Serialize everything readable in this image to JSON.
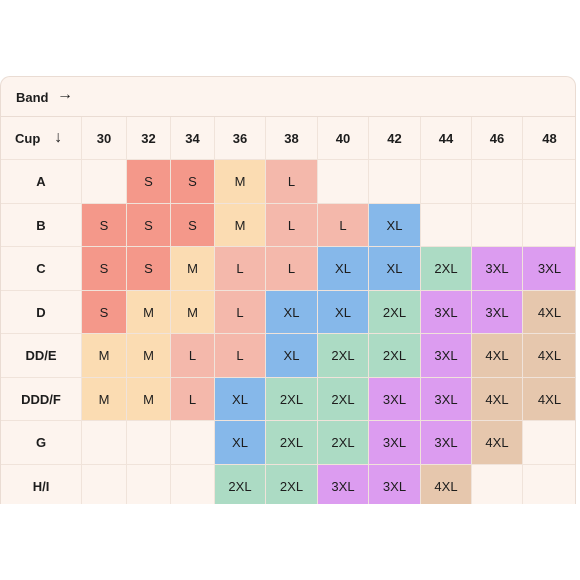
{
  "band_label": "Band",
  "band_arrow": "→",
  "cup_label": "Cup",
  "cup_arrow": "↓",
  "bands": [
    "30",
    "32",
    "34",
    "36",
    "38",
    "40",
    "42",
    "44",
    "46",
    "48"
  ],
  "cups": [
    "A",
    "B",
    "C",
    "D",
    "DD/E",
    "DDD/F",
    "G",
    "H/I"
  ],
  "sizes": [
    [
      "",
      "S",
      "S",
      "M",
      "L",
      "",
      "",
      "",
      "",
      ""
    ],
    [
      "S",
      "S",
      "S",
      "M",
      "L",
      "L",
      "XL",
      "",
      "",
      ""
    ],
    [
      "S",
      "S",
      "M",
      "L",
      "L",
      "XL",
      "XL",
      "2XL",
      "3XL",
      "3XL"
    ],
    [
      "S",
      "M",
      "M",
      "L",
      "XL",
      "XL",
      "2XL",
      "3XL",
      "3XL",
      "4XL"
    ],
    [
      "M",
      "M",
      "L",
      "L",
      "XL",
      "2XL",
      "2XL",
      "3XL",
      "4XL",
      "4XL"
    ],
    [
      "M",
      "M",
      "L",
      "XL",
      "2XL",
      "2XL",
      "3XL",
      "3XL",
      "4XL",
      "4XL"
    ],
    [
      "",
      "",
      "",
      "XL",
      "2XL",
      "2XL",
      "3XL",
      "3XL",
      "4XL",
      ""
    ],
    [
      "",
      "",
      "",
      "2XL",
      "2XL",
      "3XL",
      "3XL",
      "4XL",
      "",
      ""
    ]
  ],
  "colors": {
    "S": "#f4988a",
    "M": "#fbdcb2",
    "L": "#f4b8ab",
    "XL": "#86b8ea",
    "2XL": "#acdbc4",
    "3XL": "#dc9cf0",
    "4XL": "#e6c7ad",
    "empty": "#fdf4ee",
    "header": "#fdf4ee"
  },
  "cell_colors": [
    [
      "empty",
      "S",
      "S",
      "M",
      "L",
      "empty",
      "empty",
      "empty",
      "empty",
      "empty"
    ],
    [
      "S",
      "S",
      "S",
      "M",
      "L",
      "L",
      "XL",
      "empty",
      "empty",
      "empty"
    ],
    [
      "S",
      "S",
      "M",
      "L",
      "L",
      "XL",
      "XL",
      "2XL",
      "3XL",
      "3XL"
    ],
    [
      "S",
      "M",
      "M",
      "L",
      "XL",
      "XL",
      "2XL",
      "3XL",
      "3XL",
      "4XL"
    ],
    [
      "M",
      "M",
      "L",
      "L",
      "XL",
      "2XL",
      "2XL",
      "3XL",
      "4XL",
      "4XL"
    ],
    [
      "M",
      "M",
      "L",
      "XL",
      "2XL",
      "2XL",
      "3XL",
      "3XL",
      "4XL",
      "4XL"
    ],
    [
      "empty",
      "empty",
      "empty",
      "XL",
      "2XL",
      "2XL",
      "3XL",
      "3XL",
      "4XL",
      "empty"
    ],
    [
      "empty",
      "empty",
      "empty",
      "2XL",
      "2XL",
      "3XL",
      "3XL",
      "4XL",
      "empty",
      "empty"
    ]
  ]
}
